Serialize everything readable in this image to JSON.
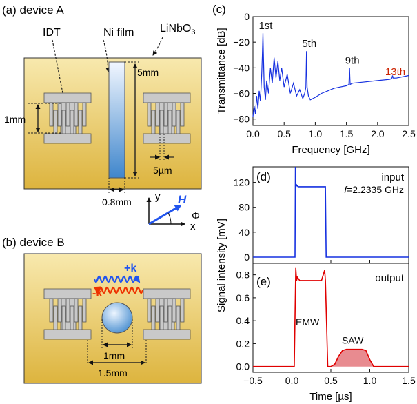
{
  "panel_a": {
    "title": "(a) device A",
    "label_idt": "IDT",
    "label_ni": "Ni film",
    "label_substrate": "LiNbO3",
    "dim_width_idt": "1mm",
    "dim_film_length": "5mm",
    "dim_gap": "5µm",
    "dim_film_width": "0.8mm"
  },
  "axes_inset": {
    "y": "y",
    "x": "x",
    "field": "H",
    "angle": "Φ"
  },
  "panel_b": {
    "title": "(b) device B",
    "label_plus_k": "+k",
    "label_minus_k": "-k",
    "dim_disk": "1mm",
    "dim_gap": "1.5mm"
  },
  "colors": {
    "substrate_top": "#f7e6a6",
    "substrate_bottom": "#dfb640",
    "electrode": "#c9c9c9",
    "film_blue": "#4a8fd0",
    "trace_blue": "#1530e0",
    "trace_red": "#e00000",
    "saw_fill": "#e88b90",
    "label_13th": "#cc2200",
    "wave_plus": "#2255ee",
    "wave_minus": "#ee3300"
  },
  "chart_data": [
    {
      "panel": "(c)",
      "type": "line",
      "xlabel": "Frequency [GHz]",
      "ylabel": "Transmittance [dB]",
      "xlim": [
        0,
        2.5
      ],
      "ylim": [
        -85,
        0
      ],
      "xticks": [
        "0.0",
        "0.5",
        "1.0",
        "1.5",
        "2.0",
        "2.5"
      ],
      "yticks": [
        "0",
        "−20",
        "−40",
        "−60",
        "−80"
      ],
      "annotations": [
        {
          "text": "1st",
          "x": 0.16,
          "y": -13
        },
        {
          "text": "5th",
          "x": 0.86,
          "y": -27
        },
        {
          "text": "9th",
          "x": 1.55,
          "y": -40
        },
        {
          "text": "13th",
          "x": 2.24,
          "y": -49
        }
      ],
      "series": [
        {
          "x": [
            0,
            0.02,
            0.04,
            0.06,
            0.08,
            0.1,
            0.12,
            0.14,
            0.15,
            0.16,
            0.17,
            0.18,
            0.2,
            0.22,
            0.25,
            0.28,
            0.31,
            0.34,
            0.37,
            0.4,
            0.43,
            0.46,
            0.5,
            0.55,
            0.6,
            0.65,
            0.7,
            0.75,
            0.8,
            0.83,
            0.85,
            0.86,
            0.87,
            0.89,
            0.92,
            1.0,
            1.1,
            1.2,
            1.3,
            1.4,
            1.5,
            1.54,
            1.55,
            1.56,
            1.6,
            1.8,
            2.0,
            2.2,
            2.23,
            2.24,
            2.25,
            2.3,
            2.4,
            2.5
          ],
          "y": [
            -78,
            -70,
            -76,
            -62,
            -72,
            -58,
            -66,
            -45,
            -30,
            -13,
            -35,
            -55,
            -65,
            -50,
            -60,
            -40,
            -52,
            -32,
            -48,
            -35,
            -50,
            -40,
            -55,
            -45,
            -60,
            -52,
            -62,
            -57,
            -64,
            -60,
            -55,
            -27,
            -55,
            -62,
            -65,
            -63,
            -60,
            -58,
            -56,
            -55,
            -54,
            -53,
            -40,
            -53,
            -52,
            -51,
            -50,
            -49,
            -48,
            -46,
            -48,
            -48,
            -47,
            -46
          ]
        }
      ]
    },
    {
      "panel": "(d)",
      "type": "line",
      "label": "input",
      "freq_note": "f=2.2335 GHz",
      "xlim": [
        -0.5,
        1.5
      ],
      "ylim": [
        -10,
        145
      ],
      "yticks": [
        "0",
        "40",
        "80",
        "120"
      ],
      "series": [
        {
          "x": [
            -0.5,
            0.0,
            0.04,
            0.045,
            0.05,
            0.06,
            0.08,
            0.42,
            0.43,
            0.44,
            0.45,
            1.5
          ],
          "y": [
            0,
            0,
            0,
            145,
            112,
            116,
            113,
            113,
            113,
            0,
            0,
            0
          ]
        }
      ]
    },
    {
      "panel": "(e)",
      "type": "line",
      "label": "output",
      "xlabel": "Time [µs]",
      "shared_ylabel": "Signal intensity [mV]",
      "xlim": [
        -0.5,
        1.5
      ],
      "ylim": [
        -0.05,
        0.9
      ],
      "xticks": [
        "−0.5",
        "0.0",
        "0.5",
        "1.0",
        "1.5"
      ],
      "yticks": [
        "0.0",
        "0.2",
        "0.4",
        "0.6",
        "0.8"
      ],
      "annotations": [
        {
          "text": "EMW",
          "x": 0.2,
          "y": 0.36
        },
        {
          "text": "SAW",
          "x": 0.78,
          "y": 0.2
        }
      ],
      "series": [
        {
          "x": [
            -0.5,
            0.03,
            0.05,
            0.06,
            0.07,
            0.1,
            0.38,
            0.42,
            0.43,
            0.46,
            0.5,
            0.55,
            0.6,
            0.65,
            0.7,
            0.8,
            0.9,
            0.95,
            1.0,
            1.05,
            1.5
          ],
          "y": [
            0,
            0,
            0.86,
            0.75,
            0.78,
            0.75,
            0.75,
            0.84,
            0.75,
            0,
            0,
            0.02,
            0.09,
            0.14,
            0.15,
            0.15,
            0.15,
            0.14,
            0.06,
            0,
            0
          ]
        }
      ],
      "shaded_region": {
        "x_from": 0.5,
        "x_to": 1.05
      }
    }
  ]
}
